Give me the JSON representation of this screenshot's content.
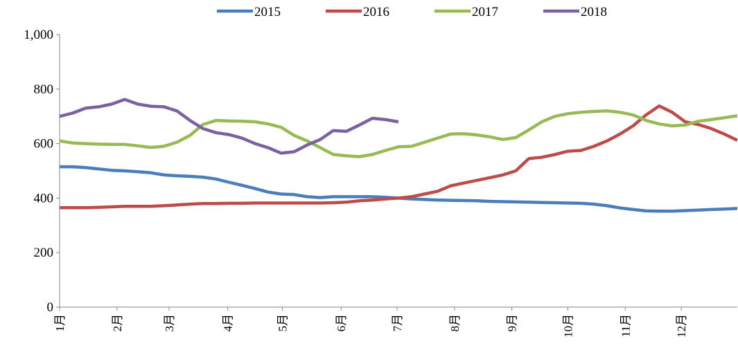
{
  "chart_data": {
    "type": "line",
    "x": [
      0,
      1,
      2,
      3,
      4,
      5,
      6,
      7,
      8,
      9,
      10,
      11,
      12,
      13,
      14,
      15,
      16,
      17,
      18,
      19,
      20,
      21,
      22,
      23,
      24,
      25,
      26,
      27,
      28,
      29,
      30,
      31,
      32,
      33,
      34,
      35,
      36,
      37,
      38,
      39,
      40,
      41,
      42,
      43,
      44,
      45,
      46,
      47,
      48,
      49,
      50,
      51,
      52
    ],
    "series": [
      {
        "name": "2015",
        "color": "#4a7ebb",
        "values": [
          515,
          515,
          512,
          507,
          502,
          500,
          497,
          493,
          485,
          482,
          480,
          477,
          470,
          458,
          447,
          435,
          422,
          415,
          413,
          405,
          402,
          405,
          405,
          405,
          405,
          403,
          400,
          397,
          395,
          393,
          392,
          391,
          390,
          388,
          387,
          386,
          385,
          384,
          383,
          382,
          381,
          378,
          372,
          364,
          358,
          353,
          352,
          352,
          354,
          356,
          358,
          360,
          362
        ]
      },
      {
        "name": "2016",
        "color": "#be4b48",
        "values": [
          365,
          365,
          365,
          366,
          368,
          370,
          370,
          370,
          372,
          375,
          378,
          380,
          380,
          381,
          381,
          382,
          382,
          382,
          382,
          382,
          382,
          383,
          385,
          390,
          393,
          397,
          400,
          405,
          415,
          425,
          445,
          455,
          465,
          475,
          485,
          500,
          545,
          550,
          560,
          572,
          575,
          590,
          610,
          635,
          665,
          705,
          738,
          715,
          680,
          670,
          655,
          635,
          612
        ]
      },
      {
        "name": "2017",
        "color": "#98b954",
        "values": [
          610,
          602,
          600,
          598,
          597,
          597,
          592,
          586,
          590,
          605,
          630,
          670,
          685,
          683,
          682,
          680,
          672,
          660,
          630,
          610,
          585,
          560,
          555,
          552,
          560,
          575,
          588,
          590,
          605,
          620,
          635,
          636,
          632,
          625,
          615,
          622,
          650,
          680,
          700,
          710,
          715,
          718,
          720,
          715,
          705,
          685,
          672,
          665,
          668,
          682,
          688,
          695,
          702
        ]
      },
      {
        "name": "2018",
        "color": "#7d60a0",
        "values": [
          700,
          712,
          730,
          735,
          745,
          762,
          745,
          737,
          735,
          720,
          685,
          655,
          640,
          633,
          620,
          600,
          585,
          565,
          570,
          595,
          615,
          648,
          645,
          668,
          693,
          688,
          680,
          null,
          null,
          null,
          null,
          null,
          null,
          null,
          null,
          null,
          null,
          null,
          null,
          null,
          null,
          null,
          null,
          null,
          null,
          null,
          null,
          null,
          null,
          null,
          null,
          null,
          null
        ]
      }
    ],
    "xlim": [
      0,
      52
    ],
    "xticks": [
      {
        "value": 0,
        "label": "1月"
      },
      {
        "value": 4.4,
        "label": "2月"
      },
      {
        "value": 8.4,
        "label": "3月"
      },
      {
        "value": 12.9,
        "label": "4月"
      },
      {
        "value": 17.1,
        "label": "5月"
      },
      {
        "value": 21.6,
        "label": "6月"
      },
      {
        "value": 25.9,
        "label": "7月"
      },
      {
        "value": 30.3,
        "label": "8月"
      },
      {
        "value": 34.7,
        "label": "9月"
      },
      {
        "value": 39,
        "label": "10月"
      },
      {
        "value": 43.4,
        "label": "11月"
      },
      {
        "value": 47.7,
        "label": "12月"
      }
    ],
    "ylim": [
      0,
      1000
    ],
    "yticks": [
      0,
      200,
      400,
      600,
      800,
      {
        "value": 1000,
        "label": "1,000"
      }
    ],
    "grid": false,
    "legend": "top"
  }
}
